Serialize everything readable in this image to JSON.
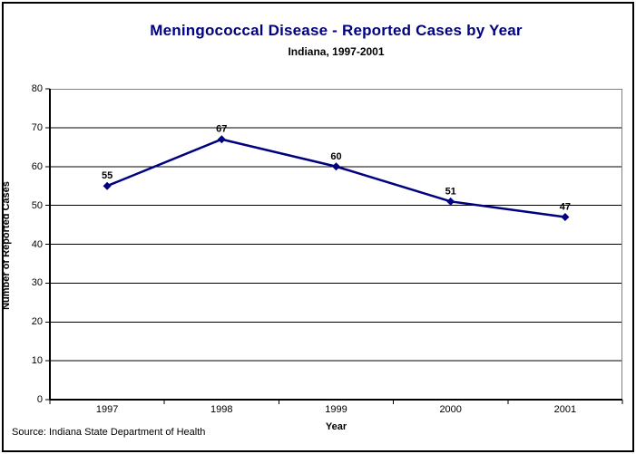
{
  "header": {
    "title": "Meningococcal Disease - Reported Cases by Year",
    "subtitle": "Indiana, 1997-2001"
  },
  "chart_data": {
    "type": "line",
    "title": "Meningococcal Disease - Reported Cases by Year",
    "subtitle": "Indiana, 1997-2001",
    "categories": [
      "1997",
      "1998",
      "1999",
      "2000",
      "2001"
    ],
    "series": [
      {
        "name": "Reported Cases",
        "values": [
          55,
          67,
          60,
          51,
          47
        ]
      }
    ],
    "data_labels": [
      "55",
      "67",
      "60",
      "51",
      "47"
    ],
    "xlabel": "Year",
    "ylabel": "Number of Reported Cases",
    "ylim": [
      0,
      80
    ],
    "ytick_step": 10,
    "grid": true,
    "legend_position": "none",
    "marker": "diamond"
  },
  "footer": {
    "source": "Source: Indiana State Department of Health"
  },
  "colors": {
    "line": "#000080",
    "title": "#000080",
    "gridline": "#000000",
    "axis": "#000000",
    "plot_border": "#808080",
    "text": "#000000",
    "background": "#ffffff"
  }
}
